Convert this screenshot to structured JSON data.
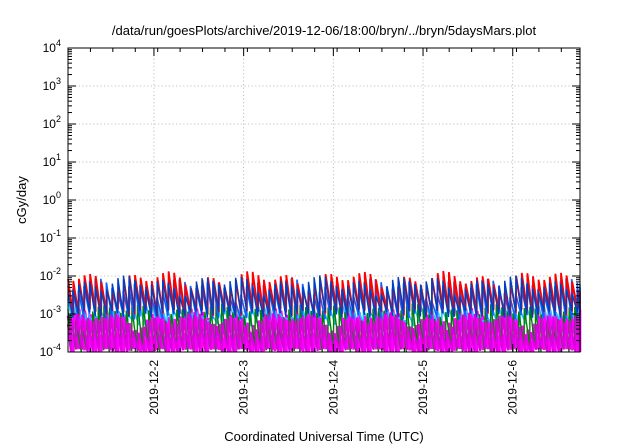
{
  "chart_data": {
    "type": "line",
    "title": "/data/run/goesPlots/archive/2019-12-06/18:00/bryn/../bryn/5daysMars.plot",
    "xlabel": "Coordinated Universal Time (UTC)",
    "ylabel": "cGy/day",
    "y_scale": "log",
    "ylim": [
      0.0001,
      10000
    ],
    "y_ticks": [
      {
        "value": 0.0001,
        "base": "10",
        "exp": "-4"
      },
      {
        "value": 0.001,
        "base": "10",
        "exp": "-3"
      },
      {
        "value": 0.01,
        "base": "10",
        "exp": "-2"
      },
      {
        "value": 0.1,
        "base": "10",
        "exp": "-1"
      },
      {
        "value": 1,
        "base": "10",
        "exp": "0"
      },
      {
        "value": 10,
        "base": "10",
        "exp": "1"
      },
      {
        "value": 100,
        "base": "10",
        "exp": "2"
      },
      {
        "value": 1000,
        "base": "10",
        "exp": "3"
      },
      {
        "value": 10000,
        "base": "10",
        "exp": "4"
      }
    ],
    "xlim": [
      "2019-12-01T01:00",
      "2019-12-06T18:00"
    ],
    "x_ticks": [
      "2019-12-2",
      "2019-12-3",
      "2019-12-4",
      "2019-12-5",
      "2019-12-6"
    ],
    "grid": true,
    "sawtooth_period_hours": 1.5,
    "series": [
      {
        "color": "#ff00ff",
        "low": 0.0001,
        "high": 0.0009,
        "phase": 0.0,
        "width": 2.6
      },
      {
        "color": "#20c0ff",
        "low": 0.0006,
        "high": 0.0016,
        "phase": 0.3,
        "width": 1.6
      },
      {
        "color": "#008000",
        "low": 0.00012,
        "high": 0.0012,
        "phase": 0.6,
        "width": 1.4
      },
      {
        "color": "#1060ff",
        "low": 0.0009,
        "high": 0.0055,
        "phase": 0.15,
        "width": 1.6
      },
      {
        "color": "#ff0000",
        "low": 0.0011,
        "high": 0.0085,
        "phase": 0.05,
        "width": 1.8
      },
      {
        "color": "#0040c0",
        "low": 0.001,
        "high": 0.0065,
        "phase": 0.1,
        "width": 1.4
      },
      {
        "color": "#e000e0",
        "low": 0.0001,
        "high": 0.0007,
        "phase": 0.45,
        "width": 2.0
      }
    ]
  }
}
